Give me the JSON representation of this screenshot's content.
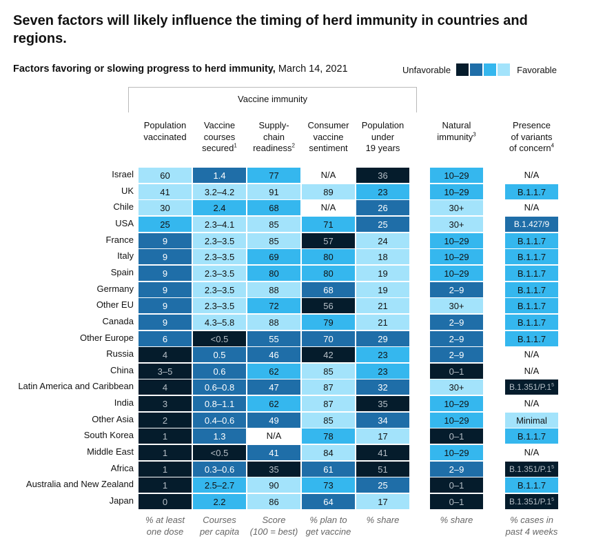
{
  "title": "Seven factors will likely influence the timing of herd immunity in countries and regions.",
  "subtitle": {
    "bold": "Factors favoring or slowing progress to herd immunity,",
    "date": " March 14, 2021"
  },
  "legend": {
    "left": "Unfavorable",
    "right": "Favorable",
    "swatches": [
      "#051c2c",
      "#1f6ea8",
      "#35b7ee",
      "#a3e3fb"
    ]
  },
  "group_label": "Vaccine immunity",
  "palette": {
    "1": "#051c2c",
    "2": "#1f6ea8",
    "3": "#35b7ee",
    "4": "#a3e3fb",
    "0": "#ffffff"
  },
  "chart_data": {
    "type": "table",
    "title": "Seven factors will likely influence the timing of herd immunity in countries and regions.",
    "subtitle": "Factors favoring or slowing progress to herd immunity, March 14, 2021",
    "columns": [
      {
        "label": "Population vaccinated",
        "note": "",
        "unit": "% at least one dose"
      },
      {
        "label": "Vaccine courses secured",
        "note": "1",
        "unit": "Courses per capita"
      },
      {
        "label": "Supply-chain readiness",
        "note": "2",
        "unit": "Score (100 = best)"
      },
      {
        "label": "Consumer vaccine sentiment",
        "note": "",
        "unit": "% plan to get vaccine"
      },
      {
        "label": "Population under 19 years",
        "note": "",
        "unit": "% share"
      },
      {
        "label": "Natural immunity",
        "note": "3",
        "unit": "% share"
      },
      {
        "label": "Presence of variants of concern",
        "note": "4",
        "unit": "% cases in past 4 weeks"
      }
    ],
    "rows": [
      {
        "name": "Israel",
        "cells": [
          [
            "60",
            4
          ],
          [
            "1.4",
            2
          ],
          [
            "77",
            3
          ],
          [
            "N/A",
            0
          ],
          [
            "36",
            1
          ],
          [
            "10–29",
            3
          ],
          [
            "N/A",
            0
          ]
        ]
      },
      {
        "name": "UK",
        "cells": [
          [
            "41",
            4
          ],
          [
            "3.2–4.2",
            4
          ],
          [
            "91",
            4
          ],
          [
            "89",
            4
          ],
          [
            "23",
            3
          ],
          [
            "10–29",
            3
          ],
          [
            "B.1.1.7",
            3
          ]
        ]
      },
      {
        "name": "Chile",
        "cells": [
          [
            "30",
            4
          ],
          [
            "2.4",
            3
          ],
          [
            "68",
            3
          ],
          [
            "N/A",
            0
          ],
          [
            "26",
            2
          ],
          [
            "30+",
            4
          ],
          [
            "N/A",
            0
          ]
        ]
      },
      {
        "name": "USA",
        "cells": [
          [
            "25",
            3
          ],
          [
            "2.3–4.1",
            4
          ],
          [
            "85",
            4
          ],
          [
            "71",
            3
          ],
          [
            "25",
            2
          ],
          [
            "30+",
            4
          ],
          [
            "B.1.427/9",
            2
          ]
        ]
      },
      {
        "name": "France",
        "cells": [
          [
            "9",
            2
          ],
          [
            "2.3–3.5",
            4
          ],
          [
            "85",
            4
          ],
          [
            "57",
            1
          ],
          [
            "24",
            4
          ],
          [
            "10–29",
            3
          ],
          [
            "B.1.1.7",
            3
          ]
        ]
      },
      {
        "name": "Italy",
        "cells": [
          [
            "9",
            2
          ],
          [
            "2.3–3.5",
            4
          ],
          [
            "69",
            3
          ],
          [
            "80",
            3
          ],
          [
            "18",
            4
          ],
          [
            "10–29",
            3
          ],
          [
            "B.1.1.7",
            3
          ]
        ]
      },
      {
        "name": "Spain",
        "cells": [
          [
            "9",
            2
          ],
          [
            "2.3–3.5",
            4
          ],
          [
            "80",
            3
          ],
          [
            "80",
            3
          ],
          [
            "19",
            4
          ],
          [
            "10–29",
            3
          ],
          [
            "B.1.1.7",
            3
          ]
        ]
      },
      {
        "name": "Germany",
        "cells": [
          [
            "9",
            2
          ],
          [
            "2.3–3.5",
            4
          ],
          [
            "88",
            4
          ],
          [
            "68",
            2
          ],
          [
            "19",
            4
          ],
          [
            "2–9",
            2
          ],
          [
            "B.1.1.7",
            3
          ]
        ]
      },
      {
        "name": "Other EU",
        "cells": [
          [
            "9",
            2
          ],
          [
            "2.3–3.5",
            4
          ],
          [
            "72",
            3
          ],
          [
            "56",
            1
          ],
          [
            "21",
            4
          ],
          [
            "30+",
            4
          ],
          [
            "B.1.1.7",
            3
          ]
        ]
      },
      {
        "name": "Canada",
        "cells": [
          [
            "9",
            2
          ],
          [
            "4.3–5.8",
            4
          ],
          [
            "88",
            4
          ],
          [
            "79",
            3
          ],
          [
            "21",
            4
          ],
          [
            "2–9",
            2
          ],
          [
            "B.1.1.7",
            3
          ]
        ]
      },
      {
        "name": "Other Europe",
        "cells": [
          [
            "6",
            2
          ],
          [
            "<0.5",
            1
          ],
          [
            "55",
            2
          ],
          [
            "70",
            2
          ],
          [
            "29",
            2
          ],
          [
            "2–9",
            2
          ],
          [
            "B.1.1.7",
            3
          ]
        ]
      },
      {
        "name": "Russia",
        "cells": [
          [
            "4",
            1
          ],
          [
            "0.5",
            2
          ],
          [
            "46",
            2
          ],
          [
            "42",
            1
          ],
          [
            "23",
            3
          ],
          [
            "2–9",
            2
          ],
          [
            "N/A",
            0
          ]
        ]
      },
      {
        "name": "China",
        "cells": [
          [
            "3–5",
            1
          ],
          [
            "0.6",
            2
          ],
          [
            "62",
            3
          ],
          [
            "85",
            4
          ],
          [
            "23",
            3
          ],
          [
            "0–1",
            1
          ],
          [
            "N/A",
            0
          ]
        ]
      },
      {
        "name": "Latin America and Caribbean",
        "cells": [
          [
            "4",
            1
          ],
          [
            "0.6–0.8",
            2
          ],
          [
            "47",
            2
          ],
          [
            "87",
            4
          ],
          [
            "32",
            2
          ],
          [
            "30+",
            4
          ],
          [
            "B.1.351/P.1|5",
            1
          ]
        ]
      },
      {
        "name": "India",
        "cells": [
          [
            "3",
            1
          ],
          [
            "0.8–1.1",
            2
          ],
          [
            "62",
            3
          ],
          [
            "87",
            4
          ],
          [
            "35",
            1
          ],
          [
            "10–29",
            3
          ],
          [
            "N/A",
            0
          ]
        ]
      },
      {
        "name": "Other Asia",
        "cells": [
          [
            "2",
            1
          ],
          [
            "0.4–0.6",
            2
          ],
          [
            "49",
            2
          ],
          [
            "85",
            4
          ],
          [
            "34",
            2
          ],
          [
            "10–29",
            3
          ],
          [
            "Minimal",
            4
          ]
        ]
      },
      {
        "name": "South Korea",
        "cells": [
          [
            "1",
            1
          ],
          [
            "1.3",
            2
          ],
          [
            "N/A",
            0
          ],
          [
            "78",
            3
          ],
          [
            "17",
            4
          ],
          [
            "0–1",
            1
          ],
          [
            "B.1.1.7",
            3
          ]
        ]
      },
      {
        "name": "Middle East",
        "cells": [
          [
            "1",
            1
          ],
          [
            "<0.5",
            1
          ],
          [
            "41",
            2
          ],
          [
            "84",
            4
          ],
          [
            "41",
            1
          ],
          [
            "10–29",
            3
          ],
          [
            "N/A",
            0
          ]
        ]
      },
      {
        "name": "Africa",
        "cells": [
          [
            "1",
            1
          ],
          [
            "0.3–0.6",
            2
          ],
          [
            "35",
            1
          ],
          [
            "61",
            2
          ],
          [
            "51",
            1
          ],
          [
            "2–9",
            2
          ],
          [
            "B.1.351/P.1|5",
            1
          ]
        ]
      },
      {
        "name": "Australia and New Zealand",
        "cells": [
          [
            "1",
            1
          ],
          [
            "2.5–2.7",
            3
          ],
          [
            "90",
            4
          ],
          [
            "73",
            3
          ],
          [
            "25",
            2
          ],
          [
            "0–1",
            1
          ],
          [
            "B.1.1.7",
            3
          ]
        ]
      },
      {
        "name": "Japan",
        "cells": [
          [
            "0",
            1
          ],
          [
            "2.2",
            3
          ],
          [
            "86",
            4
          ],
          [
            "64",
            2
          ],
          [
            "17",
            4
          ],
          [
            "0–1",
            1
          ],
          [
            "B.1.351/P.1|5",
            1
          ]
        ]
      }
    ]
  }
}
